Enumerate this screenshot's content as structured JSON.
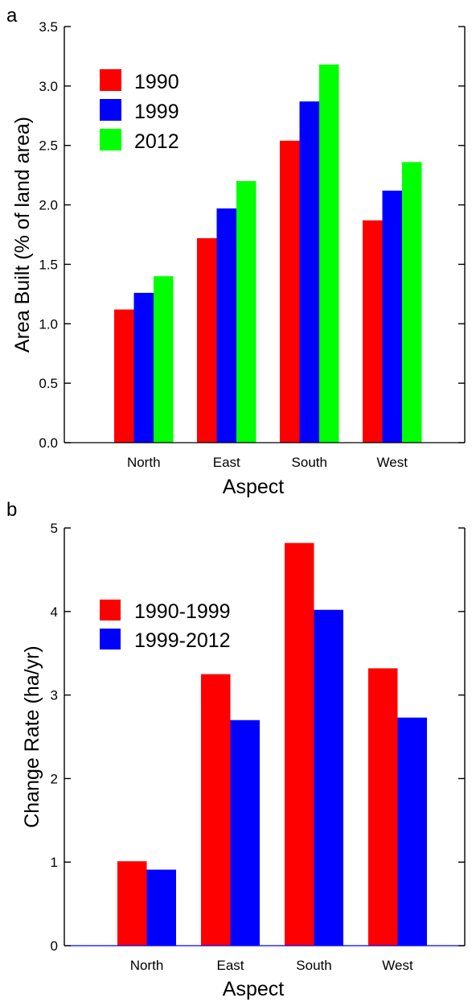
{
  "chart_data": [
    {
      "panel": "a",
      "type": "bar",
      "xlabel": "Aspect",
      "ylabel": "Area Built (% of land area)",
      "categories": [
        "North",
        "East",
        "South",
        "West"
      ],
      "ylim": [
        0,
        3.5
      ],
      "yticks": [
        0.0,
        0.5,
        1.0,
        1.5,
        2.0,
        2.5,
        3.0,
        3.5
      ],
      "ytick_labels": [
        "0.0",
        "0.5",
        "1.0",
        "1.5",
        "2.0",
        "2.5",
        "3.0",
        "3.5"
      ],
      "grid": false,
      "legend_position": "top-left",
      "series": [
        {
          "name": "1990",
          "color": "#ff0000",
          "values": [
            1.12,
            1.72,
            2.54,
            1.87
          ]
        },
        {
          "name": "1999",
          "color": "#0000ff",
          "values": [
            1.26,
            1.97,
            2.87,
            2.12
          ]
        },
        {
          "name": "2012",
          "color": "#00ff00",
          "values": [
            1.4,
            2.2,
            3.18,
            2.36
          ]
        }
      ]
    },
    {
      "panel": "b",
      "type": "bar",
      "xlabel": "Aspect",
      "ylabel": "Change Rate (ha/yr)",
      "categories": [
        "North",
        "East",
        "South",
        "West"
      ],
      "ylim": [
        0,
        5
      ],
      "yticks": [
        0,
        1,
        2,
        3,
        4,
        5
      ],
      "ytick_labels": [
        "0",
        "1",
        "2",
        "3",
        "4",
        "5"
      ],
      "grid": false,
      "legend_position": "top-left",
      "series": [
        {
          "name": "1990-1999",
          "color": "#ff0000",
          "values": [
            1.01,
            3.25,
            4.82,
            3.32
          ]
        },
        {
          "name": "1999-2012",
          "color": "#0000ff",
          "values": [
            0.91,
            2.7,
            4.02,
            2.73
          ]
        }
      ]
    }
  ]
}
